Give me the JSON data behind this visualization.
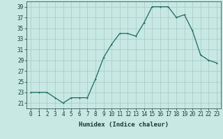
{
  "xlabel": "Humidex (Indice chaleur)",
  "ylabel": "",
  "x": [
    0,
    1,
    2,
    3,
    4,
    5,
    6,
    7,
    8,
    9,
    10,
    11,
    12,
    13,
    14,
    15,
    16,
    17,
    18,
    19,
    20,
    21,
    22,
    23
  ],
  "y": [
    23,
    23,
    23,
    22,
    21,
    22,
    22,
    22,
    25.5,
    29.5,
    32,
    34,
    34,
    33.5,
    36,
    39,
    39,
    39,
    37,
    37.5,
    34.5,
    30,
    29,
    28.5
  ],
  "line_color": "#1a6b5a",
  "bg_color": "#c8e8e4",
  "grid_color": "#a8c8c4",
  "text_color": "#1a3a34",
  "ylim_min": 20,
  "ylim_max": 40,
  "yticks": [
    21,
    23,
    25,
    27,
    29,
    31,
    33,
    35,
    37,
    39
  ],
  "xticks": [
    0,
    1,
    2,
    3,
    4,
    5,
    6,
    7,
    8,
    9,
    10,
    11,
    12,
    13,
    14,
    15,
    16,
    17,
    18,
    19,
    20,
    21,
    22,
    23
  ],
  "xlabel_fontsize": 6.5,
  "tick_fontsize": 5.5,
  "marker_size": 2.0,
  "line_width": 0.9
}
